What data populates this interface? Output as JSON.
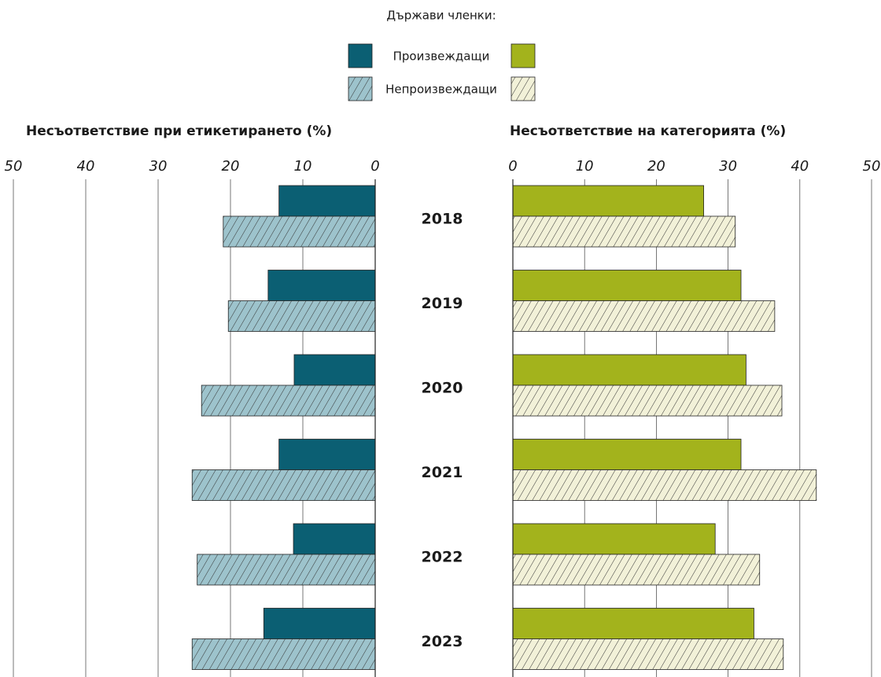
{
  "legend_title": "Държави членки:",
  "chart_data": [
    {
      "type": "hbar",
      "title": "Несъответствие при етикетирането (%)",
      "categories": [
        "2018",
        "2019",
        "2020",
        "2021",
        "2022",
        "2023"
      ],
      "series": [
        {
          "name": "Произвеждащи",
          "color": "#0b5f73",
          "values": [
            13.3,
            14.8,
            11.2,
            13.3,
            11.3,
            15.4
          ]
        },
        {
          "name": "Непроизвеждащи",
          "color": "#9dc3cc",
          "pattern": "hatch",
          "values": [
            21.0,
            20.3,
            24.0,
            25.3,
            24.6,
            25.3
          ]
        }
      ],
      "xlim": [
        0,
        50
      ],
      "xticks": [
        0,
        10,
        20,
        30,
        40,
        50
      ],
      "xreverse": true,
      "grid": true
    },
    {
      "type": "hbar",
      "title": "Несъответствие на категорията (%)",
      "series": [
        {
          "color": "#a3b31c",
          "values": [
            26.6,
            31.8,
            32.5,
            31.8,
            28.2,
            33.6
          ]
        },
        {
          "color": "#f2f1d8",
          "pattern": "hatch",
          "values": [
            31.0,
            36.5,
            37.5,
            42.3,
            34.4,
            37.7
          ]
        }
      ],
      "xlim": [
        0,
        50
      ],
      "xticks": [
        0,
        10,
        20,
        30,
        40,
        50
      ],
      "xreverse": false,
      "grid": true
    }
  ]
}
